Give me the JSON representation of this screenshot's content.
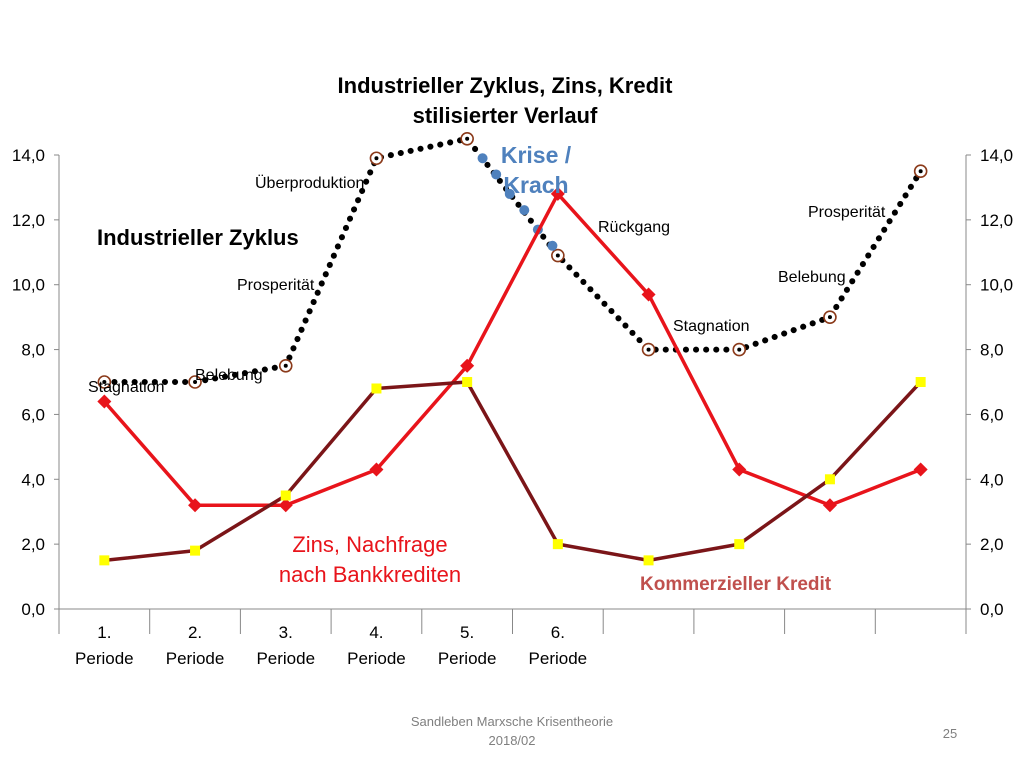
{
  "chart_data": {
    "type": "line",
    "title": [
      "Industrieller Zyklus, Zins, Kredit",
      "stilisierter Verlauf"
    ],
    "categories": [
      "1.|Periode",
      "2.|Periode",
      "3.|Periode",
      "4.|Periode",
      "5.|Periode",
      "6.|Periode",
      "",
      "",
      "",
      ""
    ],
    "ylim": [
      0,
      14
    ],
    "y_ticks": [
      "0,0",
      "2,0",
      "4,0",
      "6,0",
      "8,0",
      "10,0",
      "12,0",
      "14,0"
    ],
    "y_ticks_right": [
      "0,0",
      "2,0",
      "4,0",
      "6,0",
      "8,0",
      "10,0",
      "12,0",
      "14,0"
    ],
    "series": [
      {
        "name": "Industrieller Zyklus",
        "style": "dotted",
        "color": "#000000",
        "marker_color": "#8b3a1a",
        "points": [
          {
            "x": 1,
            "y": 7.0
          },
          {
            "x": 2,
            "y": 7.0
          },
          {
            "x": 3,
            "y": 7.5
          },
          {
            "x": 4,
            "y": 13.9
          },
          {
            "x": 5,
            "y": 14.5
          },
          {
            "x": 6,
            "y": 10.9
          },
          {
            "x": 7,
            "y": 8.0
          },
          {
            "x": 8,
            "y": 8.0
          },
          {
            "x": 9,
            "y": 9.0
          },
          {
            "x": 10,
            "y": 13.5
          }
        ]
      },
      {
        "name": "Krise / Krach",
        "style": "dots",
        "color": "#4f81bd",
        "points": [
          {
            "x": 5.0,
            "y": 14.5
          },
          {
            "x": 5.17,
            "y": 13.9
          },
          {
            "x": 5.32,
            "y": 13.4
          },
          {
            "x": 5.47,
            "y": 12.8
          },
          {
            "x": 5.63,
            "y": 12.3
          },
          {
            "x": 5.78,
            "y": 11.7
          },
          {
            "x": 5.94,
            "y": 11.2
          }
        ]
      },
      {
        "name": "Zins, Nachfrage nach Bankkrediten",
        "style": "solid",
        "color": "#e8141b",
        "marker_color": "#e8141b",
        "points": [
          {
            "x": 1,
            "y": 6.4
          },
          {
            "x": 2,
            "y": 3.2
          },
          {
            "x": 3,
            "y": 3.2
          },
          {
            "x": 4,
            "y": 4.3
          },
          {
            "x": 5,
            "y": 7.5
          },
          {
            "x": 6,
            "y": 12.8
          },
          {
            "x": 7,
            "y": 9.7
          },
          {
            "x": 8,
            "y": 4.3
          },
          {
            "x": 9,
            "y": 3.2
          },
          {
            "x": 10,
            "y": 4.3
          }
        ]
      },
      {
        "name": "Kommerzieller Kredit",
        "style": "solid",
        "color": "#7b1518",
        "marker_color": "#ffff00",
        "points": [
          {
            "x": 1,
            "y": 1.5
          },
          {
            "x": 2,
            "y": 1.8
          },
          {
            "x": 3,
            "y": 3.5
          },
          {
            "x": 4,
            "y": 6.8
          },
          {
            "x": 5,
            "y": 7.0
          },
          {
            "x": 6,
            "y": 2.0
          },
          {
            "x": 7,
            "y": 1.5
          },
          {
            "x": 8,
            "y": 2.0
          },
          {
            "x": 9,
            "y": 4.0
          },
          {
            "x": 10,
            "y": 7.0
          }
        ]
      }
    ],
    "labels": {
      "industrial_cycle": "Industrieller Zyklus",
      "crisis_line1": "Krise /",
      "crisis_line2": "Krach",
      "interest_line1": "Zins, Nachfrage",
      "interest_line2": "nach Bankkrediten",
      "commercial_credit": "Kommerzieller  Kredit"
    },
    "phase_labels": [
      "Stagnation",
      "Belebung",
      "Prosperität",
      "Überproduktion",
      "Rückgang",
      "Stagnation",
      "Belebung",
      "Prosperität"
    ]
  },
  "footer": {
    "line1": "Sandleben  Marxsche Krisentheorie",
    "line2": "2018/02",
    "slide_number": "25"
  }
}
